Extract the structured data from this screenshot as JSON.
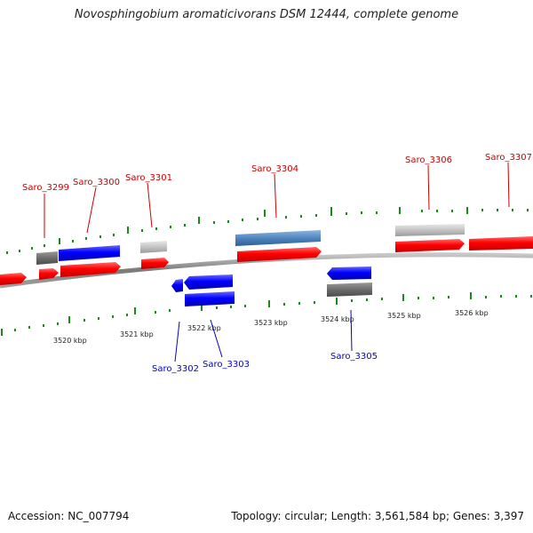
{
  "title": "Novosphingobium aromaticivorans DSM 12444, complete genome",
  "footer": {
    "accession": "Accession: NC_007794",
    "topology": "Topology: circular; Length: 3,561,584 bp; Genes: 3,397"
  },
  "colors": {
    "forward_label": "#cc0000",
    "reverse_label": "#0000cc",
    "cds_forward": "#ff0000",
    "cds_reverse": "#0000ff",
    "gene_forward": "#bfbfbf",
    "gene_reverse": "#6d6d6d",
    "rrna_or_feature": "#4f86c0",
    "tick": "#1a8a1a",
    "backbone": "#888888"
  },
  "scale_labels": [
    "3520 kbp",
    "3521 kbp",
    "3522 kbp",
    "3523 kbp",
    "3524 kbp",
    "3525 kbp",
    "3526 kbp"
  ],
  "forward_labels": [
    "Saro_3299",
    "Saro_3300",
    "Saro_3301",
    "Saro_3304",
    "Saro_3306",
    "Saro_3307"
  ],
  "reverse_labels": [
    "Saro_3302",
    "Saro_3303",
    "Saro_3305"
  ]
}
